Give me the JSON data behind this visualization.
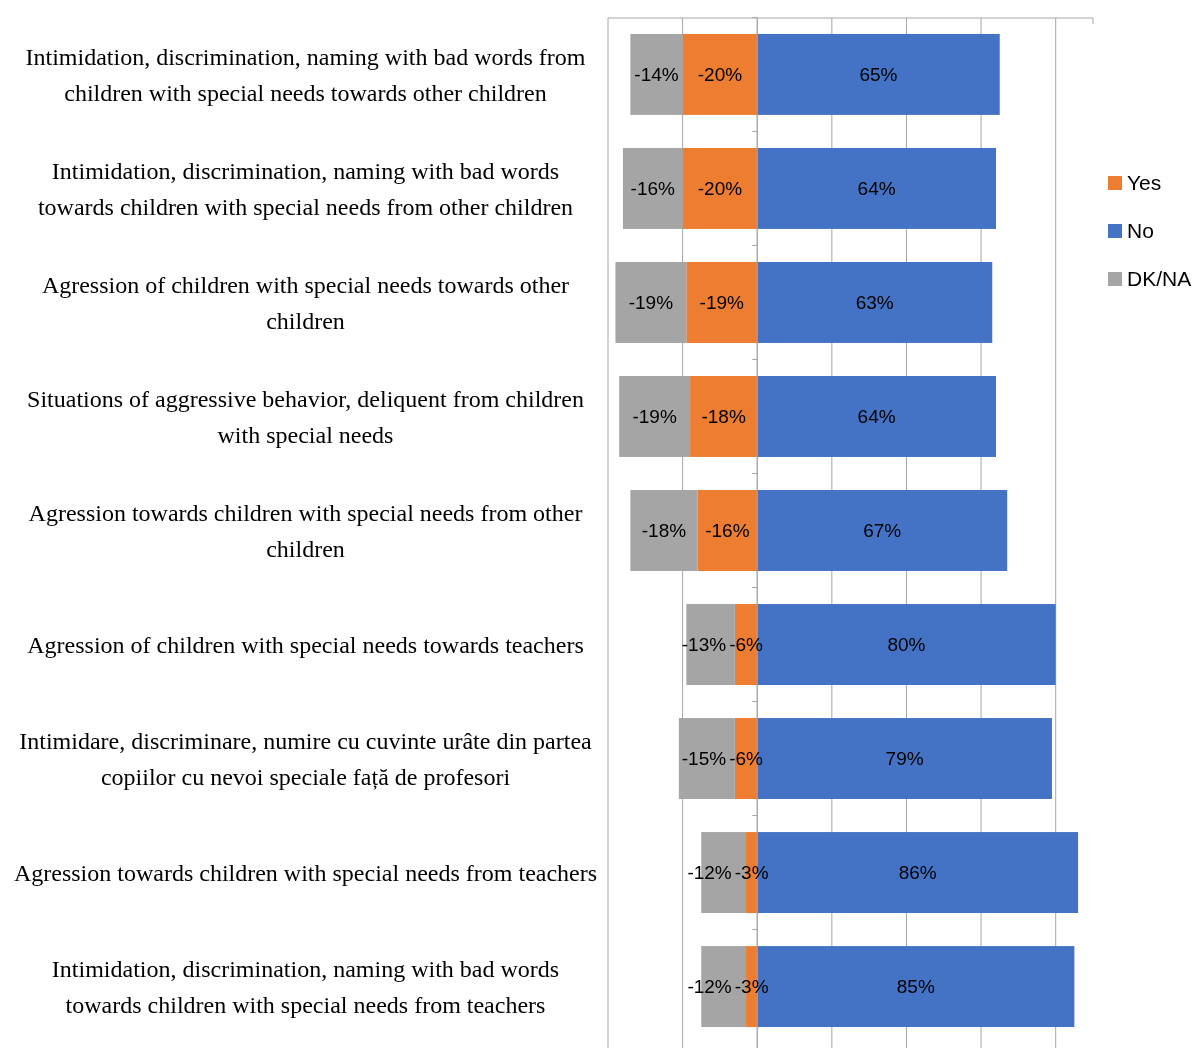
{
  "chart_data": {
    "type": "bar",
    "orientation": "horizontal",
    "stacked": true,
    "categories": [
      "Intimidation, discrimination, naming with bad words from children with special needs towards other children",
      "Intimidation, discrimination, naming with bad words towards children with special needs from other children",
      "Agression of children with special needs towards other children",
      "Situations of aggressive behavior, deliquent from children with special needs",
      "Agression towards children with special needs from other children",
      "Agression of children with special needs towards teachers",
      "Intimidare, discriminare, numire cu cuvinte urâte din partea copiilor cu nevoi speciale față de profesori",
      "Agression towards children with special needs from teachers",
      "Intimidation, discrimination, naming with bad words towards children with special needs from teachers"
    ],
    "series": [
      {
        "name": "Yes",
        "color": "#ed7d31",
        "values": [
          -20,
          -20,
          -19,
          -18,
          -16,
          -6,
          -6,
          -3,
          -3
        ],
        "value_labels": [
          "-20%",
          "-20%",
          "-19%",
          "-18%",
          "-16%",
          "-6%",
          "-6%",
          "-3%",
          "-3%"
        ]
      },
      {
        "name": "No",
        "color": "#4472c4",
        "values": [
          65,
          64,
          63,
          64,
          67,
          80,
          79,
          86,
          85
        ],
        "value_labels": [
          "65%",
          "64%",
          "63%",
          "64%",
          "67%",
          "80%",
          "79%",
          "86%",
          "85%"
        ]
      },
      {
        "name": "DK/NA",
        "color": "#a5a5a5",
        "values": [
          -14,
          -16,
          -19,
          -19,
          -18,
          -13,
          -15,
          -12,
          -12
        ],
        "value_labels": [
          "-14%",
          "-16%",
          "-19%",
          "-19%",
          "-18%",
          "-13%",
          "-15%",
          "-12%",
          "-12%"
        ]
      }
    ],
    "xlim": [
      -40,
      90
    ],
    "xticks": [
      {
        "value": -40,
        "label": null
      },
      {
        "value": -20,
        "label": null
      },
      {
        "value": 0,
        "label": null
      },
      {
        "value": 20,
        "label": null
      },
      {
        "value": 40,
        "label": null
      },
      {
        "value": 60,
        "label": null
      },
      {
        "value": 80,
        "label": null
      }
    ],
    "grid": "x",
    "legend": "right",
    "tick_labels": "y"
  }
}
